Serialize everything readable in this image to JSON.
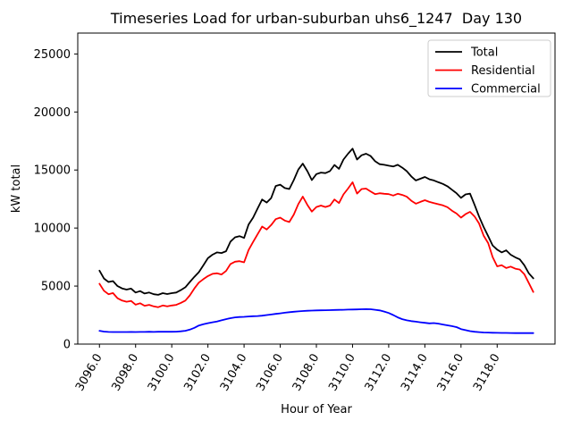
{
  "figure": {
    "background": "#ffffff"
  },
  "chart_data": {
    "type": "line",
    "title": "Timeseries Load for urban-suburban uhs6_1247  Day 130",
    "xlabel": "Hour of Year",
    "ylabel": "kW total",
    "grid": false,
    "legend_position": "upper right",
    "xlim": [
      3094.8,
      3121.2
    ],
    "ylim": [
      0,
      26800
    ],
    "xticks": [
      3096,
      3098,
      3100,
      3102,
      3104,
      3106,
      3108,
      3110,
      3112,
      3114,
      3116,
      3118
    ],
    "xtick_labels": [
      "3096.0",
      "3098.0",
      "3100.0",
      "3102.0",
      "3104.0",
      "3106.0",
      "3108.0",
      "3110.0",
      "3112.0",
      "3114.0",
      "3116.0",
      "3118.0"
    ],
    "xtick_rotation_deg": 60,
    "yticks": [
      0,
      5000,
      10000,
      15000,
      20000,
      25000
    ],
    "ytick_labels": [
      "0",
      "5000",
      "10000",
      "15000",
      "20000",
      "25000"
    ],
    "x": [
      3096.0,
      3096.25,
      3096.5,
      3096.75,
      3097.0,
      3097.25,
      3097.5,
      3097.75,
      3098.0,
      3098.25,
      3098.5,
      3098.75,
      3099.0,
      3099.25,
      3099.5,
      3099.75,
      3100.0,
      3100.25,
      3100.5,
      3100.75,
      3101.0,
      3101.25,
      3101.5,
      3101.75,
      3102.0,
      3102.25,
      3102.5,
      3102.75,
      3103.0,
      3103.25,
      3103.5,
      3103.75,
      3104.0,
      3104.25,
      3104.5,
      3104.75,
      3105.0,
      3105.25,
      3105.5,
      3105.75,
      3106.0,
      3106.25,
      3106.5,
      3106.75,
      3107.0,
      3107.25,
      3107.5,
      3107.75,
      3108.0,
      3108.25,
      3108.5,
      3108.75,
      3109.0,
      3109.25,
      3109.5,
      3109.75,
      3110.0,
      3110.25,
      3110.5,
      3110.75,
      3111.0,
      3111.25,
      3111.5,
      3111.75,
      3112.0,
      3112.25,
      3112.5,
      3112.75,
      3113.0,
      3113.25,
      3113.5,
      3113.75,
      3114.0,
      3114.25,
      3114.5,
      3114.75,
      3115.0,
      3115.25,
      3115.5,
      3115.75,
      3116.0,
      3116.25,
      3116.5,
      3116.75,
      3117.0,
      3117.25,
      3117.5,
      3117.75,
      3118.0,
      3118.25,
      3118.5,
      3118.75,
      3119.0,
      3119.25,
      3119.5,
      3119.75,
      3120.0
    ],
    "series": [
      {
        "name": "Total",
        "color": "#000000",
        "values": [
          6330,
          5650,
          5350,
          5430,
          5000,
          4800,
          4700,
          4780,
          4440,
          4570,
          4360,
          4440,
          4300,
          4240,
          4390,
          4310,
          4390,
          4440,
          4650,
          4900,
          5350,
          5800,
          6200,
          6800,
          7400,
          7700,
          7900,
          7850,
          8000,
          8830,
          9200,
          9300,
          9150,
          10300,
          10900,
          11700,
          12460,
          12200,
          12580,
          13620,
          13740,
          13450,
          13360,
          14130,
          15040,
          15550,
          14900,
          14130,
          14650,
          14780,
          14730,
          14910,
          15430,
          15100,
          15900,
          16400,
          16840,
          15900,
          16270,
          16400,
          16200,
          15760,
          15500,
          15450,
          15370,
          15300,
          15450,
          15200,
          14900,
          14450,
          14100,
          14250,
          14400,
          14200,
          14100,
          13950,
          13800,
          13600,
          13300,
          13000,
          12600,
          12900,
          12970,
          12000,
          11000,
          10100,
          9300,
          8500,
          8140,
          7900,
          8080,
          7700,
          7480,
          7300,
          6800,
          6100,
          5670
        ]
      },
      {
        "name": "Residential",
        "color": "#ff0000",
        "values": [
          5200,
          4600,
          4300,
          4400,
          3950,
          3750,
          3650,
          3720,
          3400,
          3520,
          3300,
          3380,
          3250,
          3180,
          3330,
          3250,
          3330,
          3380,
          3550,
          3750,
          4200,
          4800,
          5300,
          5600,
          5860,
          6050,
          6100,
          6000,
          6300,
          6900,
          7100,
          7150,
          7050,
          8100,
          8800,
          9480,
          10130,
          9870,
          10260,
          10770,
          10900,
          10640,
          10520,
          11160,
          12070,
          12710,
          12000,
          11420,
          11810,
          11940,
          11810,
          11940,
          12460,
          12150,
          12900,
          13400,
          13950,
          12970,
          13360,
          13400,
          13150,
          12920,
          13000,
          12950,
          12920,
          12800,
          12950,
          12850,
          12700,
          12350,
          12100,
          12250,
          12400,
          12250,
          12150,
          12050,
          11950,
          11800,
          11500,
          11250,
          10900,
          11200,
          11400,
          11000,
          10400,
          9350,
          8700,
          7500,
          6700,
          6800,
          6550,
          6680,
          6500,
          6420,
          6030,
          5260,
          4490
        ]
      },
      {
        "name": "Commercial",
        "color": "#0000ff",
        "values": [
          1150,
          1080,
          1050,
          1040,
          1040,
          1040,
          1040,
          1050,
          1040,
          1050,
          1050,
          1060,
          1050,
          1060,
          1060,
          1060,
          1060,
          1070,
          1100,
          1150,
          1250,
          1400,
          1600,
          1720,
          1800,
          1880,
          1950,
          2050,
          2150,
          2230,
          2300,
          2330,
          2350,
          2380,
          2400,
          2420,
          2450,
          2500,
          2550,
          2600,
          2650,
          2700,
          2750,
          2790,
          2820,
          2850,
          2870,
          2890,
          2900,
          2910,
          2920,
          2930,
          2940,
          2950,
          2960,
          2970,
          2980,
          2990,
          3000,
          3010,
          3000,
          2960,
          2900,
          2800,
          2680,
          2500,
          2300,
          2150,
          2050,
          1980,
          1930,
          1880,
          1830,
          1790,
          1810,
          1760,
          1690,
          1620,
          1550,
          1460,
          1290,
          1200,
          1120,
          1060,
          1030,
          1000,
          990,
          980,
          970,
          965,
          960,
          955,
          950,
          950,
          945,
          945,
          945
        ]
      }
    ]
  }
}
